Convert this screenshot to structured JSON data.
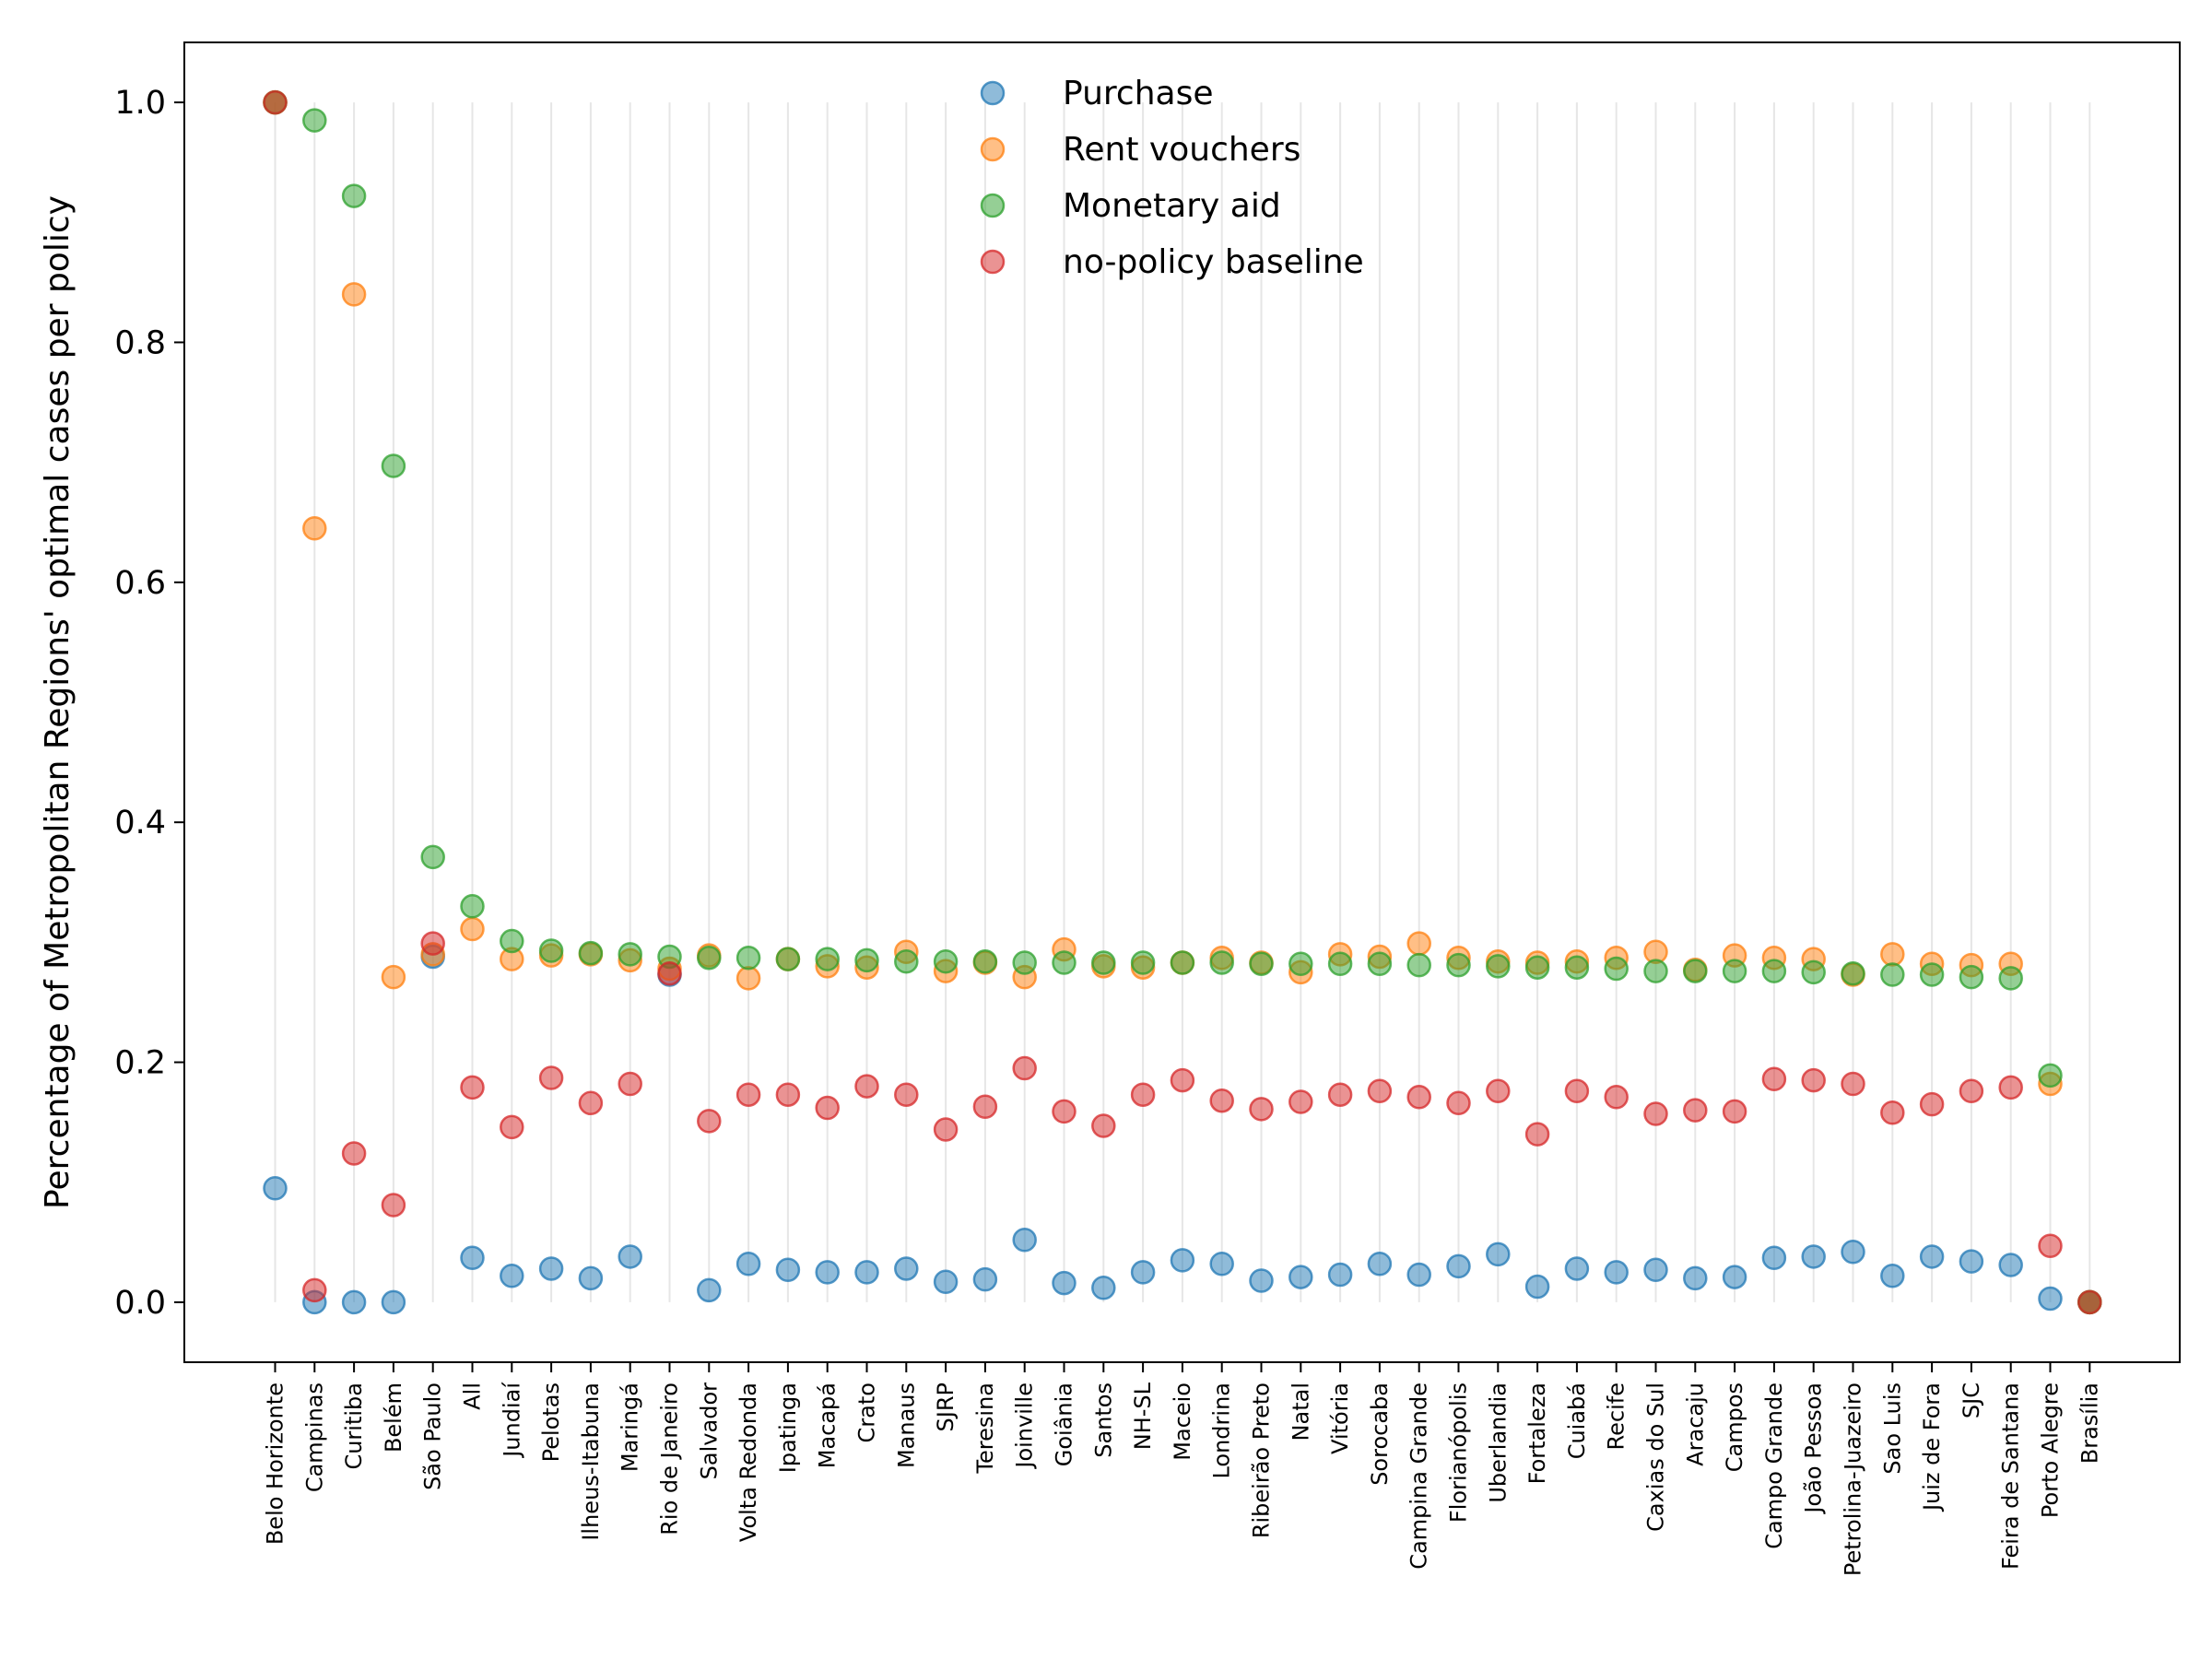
{
  "chart_data": {
    "type": "scatter",
    "title": "",
    "xlabel": "",
    "ylabel": "Percentage of Metropolitan Regions' optimal cases per policy",
    "ylim": [
      -0.05,
      1.05
    ],
    "yticks": [
      0.0,
      0.2,
      0.4,
      0.6,
      0.8,
      1.0
    ],
    "ytick_labels": [
      "0.0",
      "0.2",
      "0.4",
      "0.6",
      "0.8",
      "1.0"
    ],
    "grid": "vertical lines at each category",
    "legend_position": "top-center",
    "categories": [
      "Belo Horizonte",
      "Campinas",
      "Curitiba",
      "Belém",
      "São Paulo",
      "All",
      "Jundiaí",
      "Pelotas",
      "Ilheus-Itabuna",
      "Maringá",
      "Rio de Janeiro",
      "Salvador",
      "Volta Redonda",
      "Ipatinga",
      "Macapá",
      "Crato",
      "Manaus",
      "SJRP",
      "Teresina",
      "Joinville",
      "Goiânia",
      "Santos",
      "NH-SL",
      "Maceio",
      "Londrina",
      "Ribeirão Preto",
      "Natal",
      "Vitória",
      "Sorocaba",
      "Campina Grande",
      "Florianópolis",
      "Uberlandia",
      "Fortaleza",
      "Cuiabá",
      "Recife",
      "Caxias do Sul",
      "Aracaju",
      "Campos",
      "Campo Grande",
      "João Pessoa",
      "Petrolina-Juazeiro",
      "Sao Luis",
      "Juiz de Fora",
      "SJC",
      "Feira de Santana",
      "Porto Alegre",
      "Brasília"
    ],
    "series": [
      {
        "name": "Purchase",
        "color": "#1f77b4",
        "values": [
          0.095,
          0.0,
          0.0,
          0.0,
          0.288,
          0.037,
          0.022,
          0.028,
          0.02,
          0.038,
          0.273,
          0.01,
          0.032,
          0.027,
          0.025,
          0.025,
          0.028,
          0.017,
          0.019,
          0.052,
          0.016,
          0.012,
          0.025,
          0.035,
          0.032,
          0.018,
          0.021,
          0.023,
          0.032,
          0.023,
          0.03,
          0.04,
          0.013,
          0.028,
          0.025,
          0.027,
          0.02,
          0.021,
          0.037,
          0.038,
          0.042,
          0.022,
          0.038,
          0.034,
          0.031,
          0.003,
          0.0
        ]
      },
      {
        "name": "Rent vouchers",
        "color": "#ff7f0e",
        "values": [
          1.0,
          0.645,
          0.84,
          0.271,
          0.29,
          0.311,
          0.286,
          0.289,
          0.29,
          0.285,
          0.278,
          0.289,
          0.27,
          0.286,
          0.28,
          0.279,
          0.292,
          0.276,
          0.283,
          0.271,
          0.294,
          0.28,
          0.279,
          0.283,
          0.287,
          0.283,
          0.275,
          0.29,
          0.288,
          0.299,
          0.287,
          0.284,
          0.283,
          0.284,
          0.287,
          0.292,
          0.277,
          0.289,
          0.287,
          0.286,
          0.273,
          0.29,
          0.282,
          0.281,
          0.282,
          0.182,
          0.0
        ]
      },
      {
        "name": "Monetary aid",
        "color": "#2ca02c",
        "values": [
          1.0,
          0.985,
          0.922,
          0.697,
          0.371,
          0.33,
          0.301,
          0.293,
          0.291,
          0.29,
          0.288,
          0.287,
          0.287,
          0.286,
          0.286,
          0.285,
          0.284,
          0.284,
          0.284,
          0.283,
          0.283,
          0.283,
          0.283,
          0.283,
          0.283,
          0.282,
          0.282,
          0.282,
          0.282,
          0.281,
          0.281,
          0.28,
          0.279,
          0.279,
          0.278,
          0.276,
          0.276,
          0.276,
          0.276,
          0.275,
          0.274,
          0.273,
          0.273,
          0.271,
          0.27,
          0.189,
          0.0
        ]
      },
      {
        "name": "no-policy baseline",
        "color": "#d62728",
        "values": [
          1.0,
          0.01,
          0.124,
          0.081,
          0.299,
          0.179,
          0.146,
          0.187,
          0.166,
          0.182,
          0.274,
          0.151,
          0.173,
          0.173,
          0.162,
          0.18,
          0.173,
          0.144,
          0.163,
          0.195,
          0.159,
          0.147,
          0.173,
          0.185,
          0.168,
          0.161,
          0.167,
          0.173,
          0.176,
          0.171,
          0.166,
          0.176,
          0.14,
          0.176,
          0.171,
          0.157,
          0.16,
          0.159,
          0.186,
          0.185,
          0.182,
          0.158,
          0.165,
          0.176,
          0.179,
          0.047,
          0.0
        ]
      }
    ]
  }
}
